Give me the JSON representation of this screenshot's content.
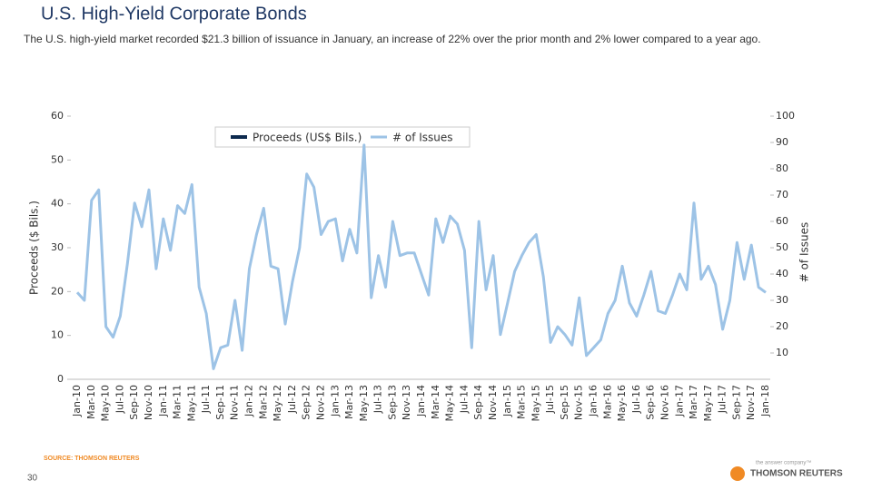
{
  "chart_data": {
    "type": "line",
    "title": "U.S. High-Yield Corporate Bonds",
    "subtitle": "The U.S. high-yield market recorded $21.3 billion of issuance in January, an increase of  22% over the prior month and 2% lower compared to a year ago.",
    "ylabel": "Proceeds ($ Bils.)",
    "y2label": "# of Issues",
    "ylim": [
      0,
      60
    ],
    "yticks": [
      0,
      10,
      20,
      30,
      40,
      50,
      60
    ],
    "y2lim": [
      0,
      100
    ],
    "y2ticks": [
      10,
      20,
      30,
      40,
      50,
      60,
      70,
      80,
      90,
      100
    ],
    "categories": [
      "Jan-10",
      null,
      "Mar-10",
      null,
      "May-10",
      null,
      "Jul-10",
      null,
      "Sep-10",
      null,
      "Nov-10",
      null,
      "Jan-11",
      null,
      "Mar-11",
      null,
      "May-11",
      null,
      "Jul-11",
      null,
      "Sep-11",
      null,
      "Nov-11",
      null,
      "Jan-12",
      null,
      "Mar-12",
      null,
      "May-12",
      null,
      "Jul-12",
      null,
      "Sep-12",
      null,
      "Nov-12",
      null,
      "Jan-13",
      null,
      "Mar-13",
      null,
      "May-13",
      null,
      "Jul-13",
      null,
      "Sep-13",
      null,
      "Nov-13",
      null,
      "Jan-14",
      null,
      "Mar-14",
      null,
      "May-14",
      null,
      "Jul-14",
      null,
      "Sep-14",
      null,
      "Nov-14",
      null,
      "Jan-15",
      null,
      "Mar-15",
      null,
      "May-15",
      null,
      "Jul-15",
      null,
      "Sep-15",
      null,
      "Nov-15",
      null,
      "Jan-16",
      null,
      "Mar-16",
      null,
      "May-16",
      null,
      "Jul-16",
      null,
      "Sep-16",
      null,
      "Nov-16",
      null,
      "Jan-17",
      null,
      "Mar-17",
      null,
      "May-17",
      null,
      "Jul-17",
      null,
      "Sep-17",
      null,
      "Nov-17",
      null,
      "Jan-18"
    ],
    "series": [
      {
        "name": "Proceeds (US$ Bils.)",
        "color": "#0d2a4e",
        "legend_mark": "bar"
      },
      {
        "name": "# of Issues",
        "color": "#9dc3e6",
        "axis": "y2",
        "legend_mark": "line",
        "values": [
          33,
          30,
          68,
          72,
          20,
          16,
          24,
          44,
          67,
          58,
          72,
          42,
          61,
          49,
          66,
          63,
          74,
          35,
          25,
          4,
          12,
          13,
          30,
          11,
          42,
          55,
          65,
          43,
          42,
          21,
          37,
          50,
          78,
          73,
          55,
          60,
          61,
          45,
          57,
          48,
          89,
          31,
          47,
          35,
          60,
          47,
          48,
          48,
          40,
          32,
          61,
          52,
          62,
          59,
          49,
          12,
          60,
          34,
          47,
          17,
          29,
          41,
          47,
          52,
          55,
          39,
          14,
          20,
          17,
          13,
          31,
          9,
          12,
          15,
          25,
          30,
          43,
          29,
          24,
          32,
          41,
          26,
          25,
          32,
          40,
          34,
          67,
          38,
          43,
          36,
          19,
          30,
          52,
          38,
          51,
          35,
          33
        ]
      }
    ]
  },
  "source": "SOURCE: THOMSON REUTERS",
  "page_number": "30",
  "logo": {
    "tagline": "the answer company™",
    "name": "THOMSON REUTERS"
  }
}
